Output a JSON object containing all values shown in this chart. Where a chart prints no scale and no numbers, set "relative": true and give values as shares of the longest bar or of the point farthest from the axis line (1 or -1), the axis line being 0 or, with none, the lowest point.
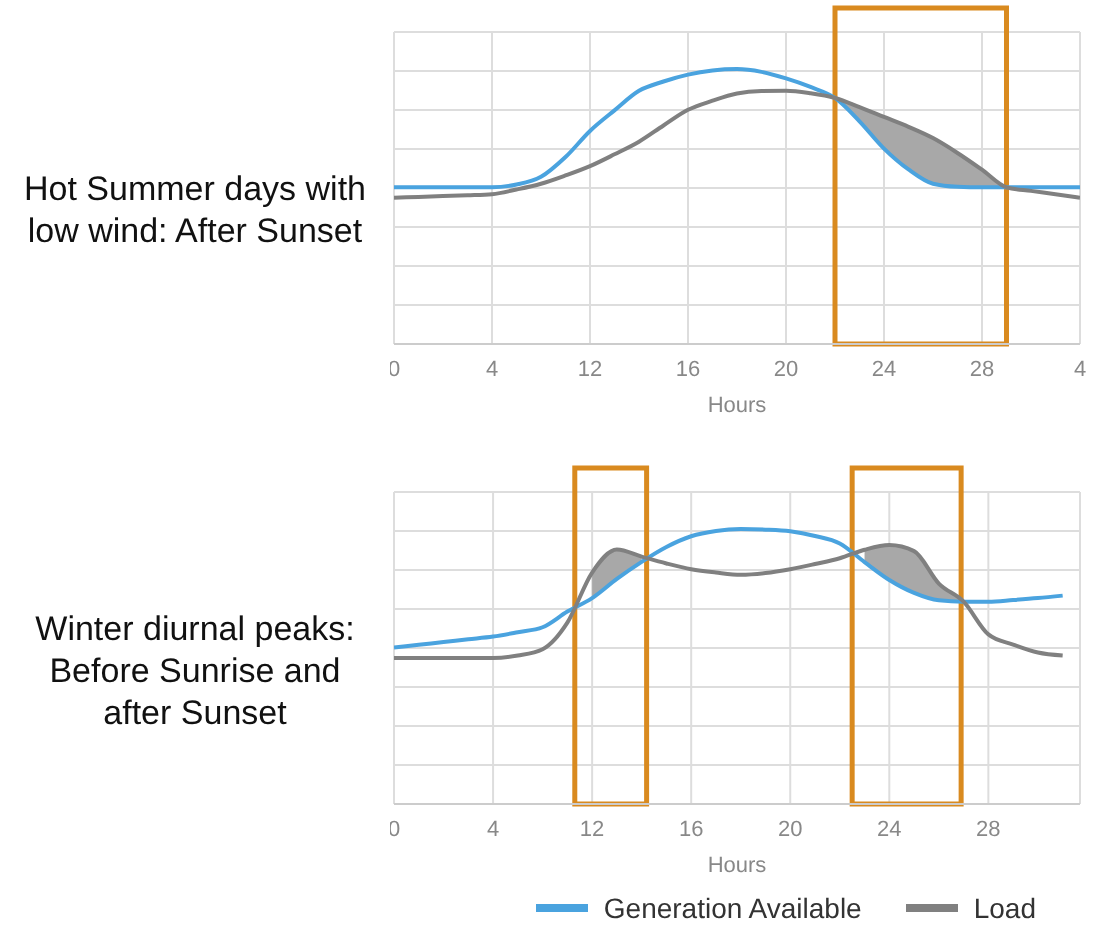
{
  "chart_data": [
    {
      "type": "line",
      "title": "Hot Summer days with low wind: After Sunset",
      "xlabel": "Hours",
      "relative": true,
      "grid": true,
      "legend": false,
      "marker": "none",
      "line_style": "solid",
      "categories": [
        "0",
        null,
        null,
        null,
        "4",
        null,
        null,
        null,
        "12",
        null,
        null,
        null,
        "16",
        null,
        null,
        null,
        "20",
        null,
        null,
        null,
        "24",
        null,
        null,
        null,
        "28",
        null,
        null,
        null,
        "4"
      ],
      "series": [
        {
          "color": "#4aa3df",
          "values": [
            0.57,
            0.57,
            0.57,
            0.57,
            0.57,
            0.58,
            0.608,
            0.68,
            0.775,
            0.85,
            0.921,
            0.955,
            0.98,
            0.995,
            1,
            0.99,
            0.966,
            0.935,
            0.895,
            0.81,
            0.711,
            0.635,
            0.583,
            0.572,
            0.57,
            0.57,
            0.57,
            0.57,
            0.57
          ]
        },
        {
          "color": "#808080",
          "values": [
            0.532,
            0.535,
            0.538,
            0.541,
            0.545,
            0.562,
            0.583,
            0.613,
            0.647,
            0.69,
            0.736,
            0.795,
            0.852,
            0.885,
            0.911,
            0.92,
            0.921,
            0.912,
            0.895,
            0.862,
            0.826,
            0.79,
            0.749,
            0.695,
            0.634,
            0.57,
            0.557,
            0.545,
            0.532
          ],
          "lower": [
            null,
            null,
            null,
            null,
            null,
            null,
            null,
            null,
            null,
            null,
            null,
            null,
            null,
            null,
            null,
            null,
            null,
            null,
            0.895,
            0.81,
            0.711,
            0.635,
            0.583,
            0.572,
            0.57,
            0.57,
            null,
            null,
            null
          ],
          "upper": [
            null,
            null,
            null,
            null,
            null,
            null,
            null,
            null,
            null,
            null,
            null,
            null,
            null,
            null,
            null,
            null,
            null,
            null,
            0.895,
            0.862,
            0.826,
            0.79,
            0.749,
            0.695,
            0.634,
            0.57,
            null,
            null,
            null
          ]
        }
      ]
    },
    {
      "type": "line",
      "title": "Winter diurnal peaks: Before Sunrise and after Sunset",
      "xlabel": "Hours",
      "relative": true,
      "grid": true,
      "legend": "bottom",
      "marker": "none",
      "line_style": "solid",
      "categories": [
        "0",
        null,
        null,
        null,
        "4",
        null,
        null,
        null,
        "12",
        null,
        null,
        null,
        "16",
        null,
        null,
        null,
        "20",
        null,
        null,
        null,
        "24",
        null,
        null,
        null,
        "28",
        null,
        null,
        null
      ],
      "series": [
        {
          "name": "Generation Available",
          "color": "#4aa3df",
          "values": [
            0.569,
            0.579,
            0.589,
            0.599,
            0.609,
            0.625,
            0.643,
            0.7,
            0.749,
            0.819,
            0.881,
            0.935,
            0.974,
            0.993,
            1,
            0.998,
            0.992,
            0.975,
            0.948,
            0.88,
            0.815,
            0.768,
            0.741,
            0.736,
            0.736,
            0.742,
            0.749,
            0.758
          ]
        },
        {
          "name": "Load",
          "color": "#808080",
          "values": [
            0.531,
            0.531,
            0.531,
            0.531,
            0.531,
            0.54,
            0.563,
            0.66,
            0.842,
            0.926,
            0.9,
            0.875,
            0.854,
            0.842,
            0.834,
            0.84,
            0.854,
            0.873,
            0.894,
            0.925,
            0.942,
            0.92,
            0.802,
            0.736,
            0.617,
            0.58,
            0.551,
            0.54
          ],
          "lower": [
            null,
            null,
            null,
            null,
            null,
            null,
            null,
            null,
            0.749,
            0.819,
            0.881,
            null,
            null,
            null,
            null,
            null,
            null,
            null,
            null,
            0.88,
            0.815,
            0.768,
            0.741,
            0.736,
            null,
            null,
            null,
            null
          ],
          "upper": [
            null,
            null,
            null,
            null,
            null,
            null,
            null,
            null,
            0.842,
            0.926,
            0.9,
            null,
            null,
            null,
            null,
            null,
            null,
            null,
            null,
            0.925,
            0.942,
            0.92,
            0.802,
            0.736,
            null,
            null,
            null,
            null
          ]
        }
      ]
    }
  ]
}
